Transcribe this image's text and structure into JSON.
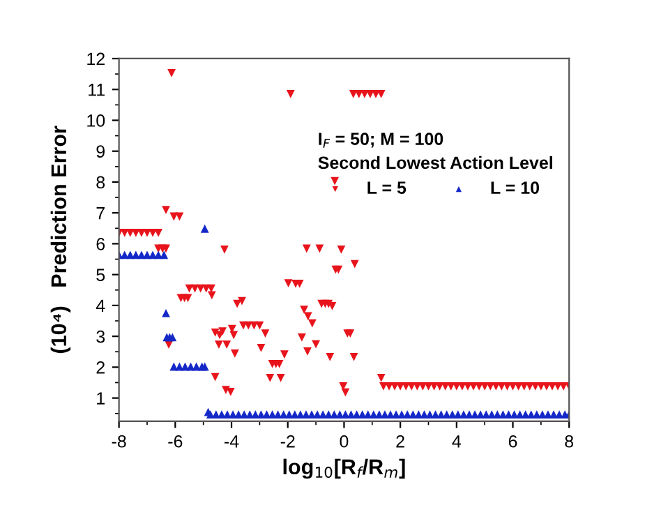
{
  "chart_data": {
    "type": "scatter",
    "xlabel": "log$_{10}$[R$_{f}$/R$_{m}$]",
    "ylabel": "(10⁴)   Prediction Error",
    "legend_title": "I$_{F}$ = 50; M = 100\nSecond Lowest Action Level",
    "legend": "top right",
    "xlim": [
      -8,
      8
    ],
    "ylim": [
      0.25,
      12
    ],
    "xticks": [
      -8,
      -6,
      -4,
      -2,
      0,
      2,
      4,
      6,
      8
    ],
    "yticks": [
      1,
      2,
      3,
      4,
      5,
      6,
      7,
      8,
      9,
      10,
      11,
      12
    ],
    "grid": false,
    "series": [
      {
        "name": "L = 5",
        "color": "#e8141c",
        "marker": "triangle_down",
        "x": [
          -8,
          -7.8,
          -7.6,
          -7.4,
          -7.2,
          -7,
          -6.8,
          -6.6,
          -6.33,
          -6.6,
          -6.45,
          -6.33,
          -6.13,
          -6.23,
          -6.05,
          -5.85,
          -5.8,
          -5.67,
          -5.55,
          -5.5,
          -5.3,
          -5.1,
          -4.9,
          -4.72,
          -4.7,
          -4.58,
          -4.58,
          -4.42,
          -4.32,
          -4.45,
          -4.25,
          -4.17,
          -4.2,
          -4.03,
          -3.98,
          -3.92,
          -3.88,
          -3.8,
          -3.63,
          -3.58,
          -3.4,
          -3.2,
          -3.0,
          -2.95,
          -2.8,
          -2.63,
          -2.55,
          -2.42,
          -2.3,
          -2.25,
          -2.12,
          -1.98,
          -1.9,
          -1.72,
          -1.58,
          -1.5,
          -1.42,
          -1.33,
          -1.3,
          -1.28,
          -1.13,
          -1.0,
          -0.87,
          -0.8,
          -0.67,
          -0.55,
          -0.5,
          -0.42,
          -0.33,
          -0.3,
          -0.2,
          -0.1,
          -0.03,
          0.05,
          0.12,
          0.22,
          0.35,
          0.38,
          0.33,
          0.53,
          0.73,
          0.93,
          1.13,
          1.32,
          1.32,
          1.4,
          1.6,
          1.8,
          2.0,
          2.2,
          2.4,
          2.6,
          2.8,
          3.0,
          3.2,
          3.4,
          3.6,
          3.8,
          4.0,
          4.2,
          4.4,
          4.6,
          4.8,
          5.0,
          5.2,
          5.4,
          5.6,
          5.8,
          6.0,
          6.2,
          6.4,
          6.6,
          6.8,
          7.0,
          7.2,
          7.4,
          7.6,
          7.8,
          8.0
        ],
        "values": [
          6.35,
          6.35,
          6.35,
          6.35,
          6.35,
          6.35,
          6.35,
          6.35,
          7.09,
          5.84,
          5.84,
          5.84,
          11.53,
          2.73,
          6.88,
          6.88,
          4.24,
          4.24,
          4.24,
          4.55,
          4.55,
          4.55,
          4.55,
          4.55,
          4.33,
          1.68,
          3.12,
          3.04,
          3.16,
          2.73,
          5.81,
          2.73,
          1.26,
          1.2,
          3.24,
          3.04,
          2.44,
          4.05,
          4.14,
          3.35,
          3.35,
          3.35,
          3.35,
          2.62,
          3.09,
          1.65,
          2.1,
          2.1,
          2.1,
          1.65,
          2.41,
          4.72,
          10.85,
          4.7,
          4.7,
          2.96,
          3.86,
          5.84,
          2.51,
          3.65,
          3.42,
          2.74,
          5.84,
          4.05,
          4.05,
          4.05,
          2.33,
          3.98,
          8.03,
          5.16,
          5.16,
          5.81,
          1.38,
          1.18,
          3.09,
          3.09,
          2.33,
          5.34,
          10.85,
          10.85,
          10.85,
          10.85,
          10.85,
          10.85,
          1.65,
          1.38,
          1.38,
          1.38,
          1.38,
          1.38,
          1.38,
          1.38,
          1.38,
          1.38,
          1.38,
          1.38,
          1.38,
          1.38,
          1.38,
          1.38,
          1.38,
          1.38,
          1.38,
          1.38,
          1.38,
          1.38,
          1.38,
          1.38,
          1.38,
          1.38,
          1.38,
          1.38,
          1.38,
          1.38,
          1.38,
          1.38,
          1.38,
          1.38,
          1.38
        ]
      },
      {
        "name": "L = 10",
        "color": "#1428c8",
        "marker": "triangle",
        "x": [
          -8,
          -7.8,
          -7.6,
          -7.4,
          -7.2,
          -7,
          -6.8,
          -6.6,
          -6.4,
          -6.33,
          -6.3,
          -6.2,
          -6.1,
          -6.05,
          -5.85,
          -5.65,
          -5.45,
          -5.25,
          -5.05,
          -4.95,
          -4.95,
          -4.83,
          -4.75,
          -4.55,
          -4.35,
          -4.15,
          -3.95,
          -3.75,
          -3.55,
          -3.35,
          -3.15,
          -2.95,
          -2.75,
          -2.55,
          -2.35,
          -2.15,
          -1.95,
          -1.75,
          -1.55,
          -1.35,
          -1.15,
          -0.95,
          -0.75,
          -0.55,
          -0.35,
          -0.15,
          0.05,
          0.25,
          0.45,
          0.65,
          0.85,
          1.05,
          1.25,
          1.45,
          1.65,
          1.85,
          2.05,
          2.25,
          2.45,
          2.65,
          2.85,
          3.05,
          3.25,
          3.45,
          3.65,
          3.85,
          4.05,
          4.25,
          4.45,
          4.65,
          4.85,
          5.05,
          5.25,
          5.45,
          5.65,
          5.85,
          6.05,
          6.25,
          6.45,
          6.65,
          6.85,
          7.05,
          7.25,
          7.45,
          7.65,
          7.85,
          8.0
        ],
        "values": [
          5.64,
          5.64,
          5.64,
          5.64,
          5.64,
          5.64,
          5.64,
          5.64,
          5.64,
          3.75,
          2.97,
          2.97,
          2.97,
          2.02,
          2.02,
          2.02,
          2.02,
          2.02,
          2.02,
          2.02,
          6.49,
          0.55,
          0.47,
          0.47,
          0.47,
          0.47,
          0.47,
          0.47,
          0.47,
          0.47,
          0.47,
          0.47,
          0.47,
          0.47,
          0.47,
          0.47,
          0.47,
          0.47,
          0.47,
          0.47,
          0.47,
          0.47,
          0.47,
          0.47,
          0.47,
          0.47,
          0.47,
          0.47,
          0.47,
          0.47,
          0.47,
          0.47,
          0.47,
          0.47,
          0.47,
          0.47,
          0.47,
          0.47,
          0.47,
          0.47,
          0.47,
          0.47,
          0.47,
          0.47,
          0.47,
          0.47,
          0.47,
          0.47,
          0.47,
          0.47,
          0.47,
          0.47,
          0.47,
          0.47,
          0.47,
          0.47,
          0.47,
          0.47,
          0.47,
          0.47,
          0.47,
          0.47,
          0.47,
          0.47,
          0.47,
          0.47,
          0.47
        ]
      }
    ]
  }
}
